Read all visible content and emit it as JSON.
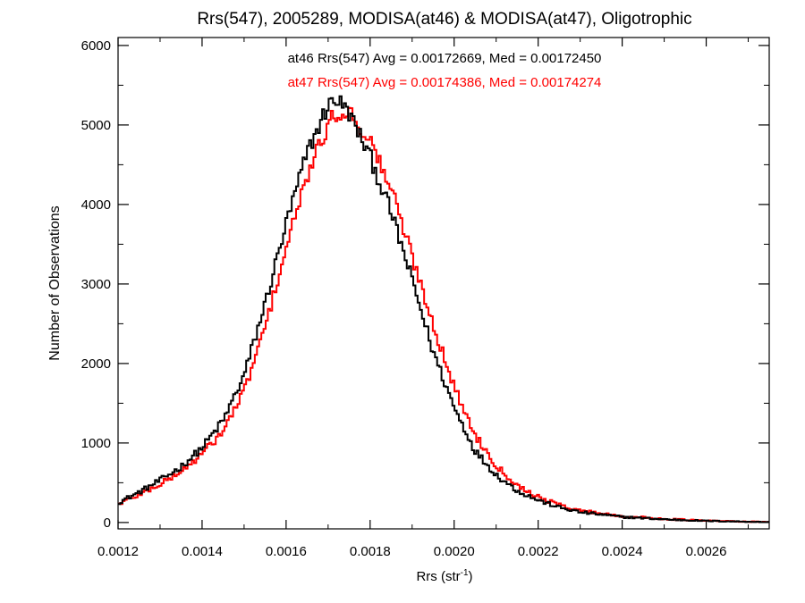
{
  "chart_data": {
    "type": "line",
    "title": "Rrs(547), 2005289, MODISA(at46) & MODISA(at47), Oligotrophic",
    "xlabel": "Rrs (str",
    "xlabel_sup": "-1",
    "xlabel_close": ")",
    "ylabel": "Number of Observations",
    "xlim": [
      0.0012,
      0.00275
    ],
    "ylim": [
      -80,
      6100
    ],
    "xticks": [
      0.0012,
      0.0014,
      0.0016,
      0.0018,
      0.002,
      0.0022,
      0.0024,
      0.0026
    ],
    "xtick_labels": [
      "0.0012",
      "0.0014",
      "0.0016",
      "0.0018",
      "0.0020",
      "0.0022",
      "0.0024",
      "0.0026"
    ],
    "yticks": [
      0,
      1000,
      2000,
      3000,
      4000,
      5000,
      6000
    ],
    "ytick_labels": [
      "0",
      "1000",
      "2000",
      "3000",
      "4000",
      "5000",
      "6000"
    ],
    "grid": false,
    "annotations": [
      {
        "text": "at46 Rrs(547) Avg = 0.00172669, Med = 0.00172450",
        "color": "#000000"
      },
      {
        "text": "at47 Rrs(547) Avg = 0.00174386, Med = 0.00174274",
        "color": "#ff0000"
      }
    ],
    "series": [
      {
        "color": "#000000",
        "style": "step",
        "x": [
          0.0012,
          0.00125,
          0.0013,
          0.00135,
          0.0014,
          0.00145,
          0.0015,
          0.00155,
          0.0016,
          0.00165,
          0.0017,
          0.00172,
          0.00175,
          0.0018,
          0.00185,
          0.0019,
          0.00195,
          0.002,
          0.00205,
          0.0021,
          0.00215,
          0.0022,
          0.00225,
          0.0023,
          0.0024,
          0.0025,
          0.0026,
          0.00275
        ],
        "y": [
          250,
          380,
          530,
          700,
          940,
          1280,
          1850,
          2750,
          3750,
          4650,
          5250,
          5330,
          5150,
          4600,
          3900,
          3050,
          2150,
          1450,
          900,
          600,
          400,
          280,
          190,
          130,
          70,
          40,
          20,
          5
        ]
      },
      {
        "color": "#ff0000",
        "style": "step",
        "x": [
          0.0012,
          0.00125,
          0.0013,
          0.00135,
          0.0014,
          0.00145,
          0.0015,
          0.00155,
          0.0016,
          0.00165,
          0.0017,
          0.00172,
          0.00175,
          0.0018,
          0.00185,
          0.0019,
          0.00195,
          0.002,
          0.00205,
          0.0021,
          0.00215,
          0.0022,
          0.00225,
          0.0023,
          0.0024,
          0.0025,
          0.0026,
          0.00275
        ],
        "y": [
          230,
          350,
          480,
          640,
          860,
          1150,
          1650,
          2450,
          3450,
          4350,
          5000,
          5150,
          5170,
          4800,
          4200,
          3350,
          2500,
          1700,
          1100,
          720,
          470,
          320,
          220,
          150,
          80,
          45,
          22,
          5
        ]
      }
    ]
  }
}
